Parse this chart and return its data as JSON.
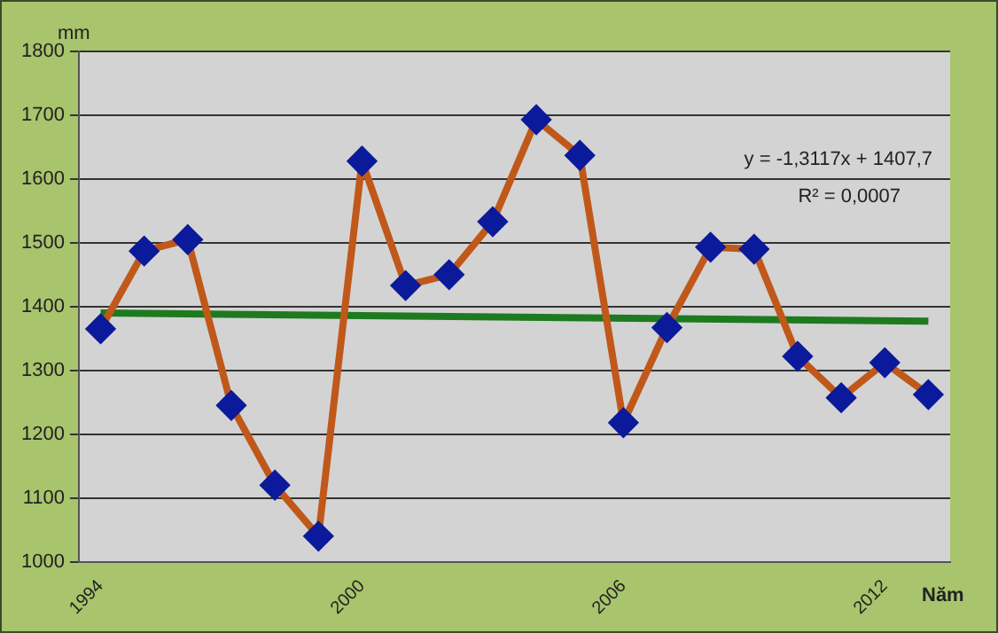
{
  "chart_data": {
    "type": "line",
    "xlabel": "Năm",
    "ylabel": "mm",
    "categories": [
      "1994",
      null,
      null,
      null,
      null,
      null,
      "2000",
      null,
      null,
      null,
      null,
      null,
      "2006",
      null,
      null,
      null,
      null,
      null,
      "2012",
      null
    ],
    "series": [
      {
        "color": "#c0581a",
        "marker": "diamond",
        "values": [
          1365,
          1487,
          1505,
          1245,
          1120,
          1040,
          1628,
          1433,
          1450,
          1533,
          1693,
          1637,
          1218,
          1367,
          1493,
          1490,
          1322,
          1257,
          1312,
          1262
        ]
      },
      {
        "type": "line",
        "color": "#1e7a1e",
        "marker": "none",
        "values": [
          1390,
          null,
          null,
          null,
          null,
          null,
          null,
          null,
          null,
          null,
          null,
          null,
          null,
          null,
          null,
          null,
          null,
          null,
          null,
          1377
        ]
      }
    ],
    "ylim": [
      1000,
      1800
    ],
    "yticks": [
      1000,
      1100,
      1200,
      1300,
      1400,
      1500,
      1600,
      1700,
      1800
    ],
    "grid": "y",
    "legend": false,
    "annotations": [
      "y = -1,3117x + 1407,7",
      "R² = 0,0007"
    ]
  }
}
